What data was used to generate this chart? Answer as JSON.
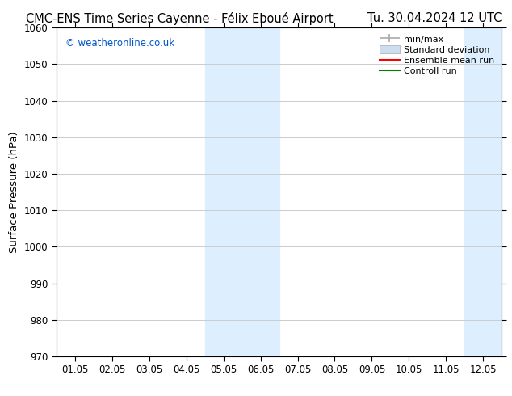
{
  "title_left": "CMC-ENS Time Series Cayenne - Félix Eboué Airport",
  "title_right": "Tu. 30.04.2024 12 UTC",
  "ylabel": "Surface Pressure (hPa)",
  "ylim": [
    970,
    1060
  ],
  "yticks": [
    970,
    980,
    990,
    1000,
    1010,
    1020,
    1030,
    1040,
    1050,
    1060
  ],
  "xtick_labels": [
    "01.05",
    "02.05",
    "03.05",
    "04.05",
    "05.05",
    "06.05",
    "07.05",
    "08.05",
    "09.05",
    "10.05",
    "11.05",
    "12.05"
  ],
  "xtick_positions": [
    0,
    1,
    2,
    3,
    4,
    5,
    6,
    7,
    8,
    9,
    10,
    11
  ],
  "xlim": [
    -0.5,
    11.5
  ],
  "shaded_regions": [
    {
      "xmin": 3.5,
      "xmax": 5.5,
      "color": "#ddeeff"
    },
    {
      "xmin": 10.5,
      "xmax": 11.5,
      "color": "#ddeeff"
    }
  ],
  "watermark": "© weatheronline.co.uk",
  "watermark_color": "#0055cc",
  "background_color": "#ffffff",
  "grid_color": "#cccccc",
  "legend_minmax_color": "#aaaaaa",
  "legend_stddev_color": "#ccddef",
  "legend_ensemble_color": "#ff0000",
  "legend_control_color": "#008000",
  "title_fontsize": 10.5,
  "tick_fontsize": 8.5,
  "ylabel_fontsize": 9.5,
  "watermark_fontsize": 8.5,
  "legend_fontsize": 8
}
